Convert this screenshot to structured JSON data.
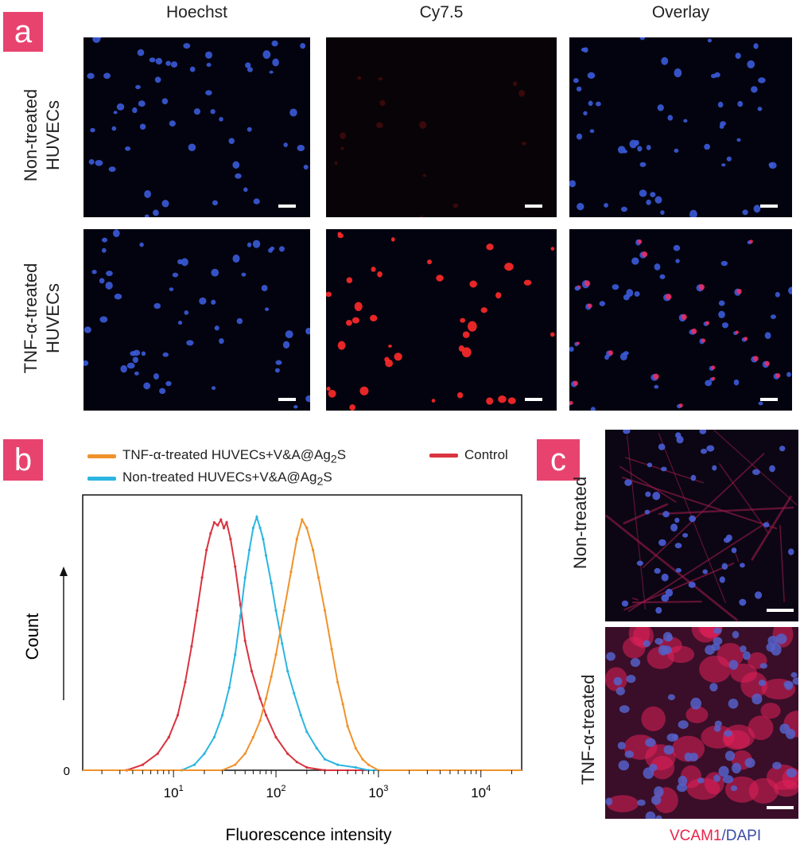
{
  "panels": {
    "a": {
      "letter": "a",
      "columns": [
        "Hoechst",
        "Cy7.5",
        "Overlay"
      ],
      "rows": [
        {
          "line1": "Non-treated",
          "line2": "HUVECs"
        },
        {
          "line1": "TNF-α-treated",
          "line2": "HUVECs"
        }
      ]
    },
    "b": {
      "letter": "b"
    },
    "c": {
      "letter": "c",
      "rows": [
        "Non-treated",
        "TNF-α-treated"
      ],
      "caption_vcam": "VCAM1",
      "caption_sep": "/",
      "caption_dapi": "DAPI"
    }
  },
  "colors": {
    "panel_badge": "#e8436f",
    "hoechst": "#3b5bd9",
    "cy75": "#ff2a2a",
    "vcam": "#e8234a",
    "dapi": "#3a4aa8"
  },
  "chart_data": {
    "type": "line",
    "title": "",
    "xlabel": "Fluorescence intensity",
    "ylabel": "Count",
    "xscale": "log",
    "xlim": [
      1.3,
      25000
    ],
    "ylim": [
      0,
      100
    ],
    "x_ticks": [
      {
        "value": 10,
        "base": "10",
        "exp": "1"
      },
      {
        "value": 100,
        "base": "10",
        "exp": "2"
      },
      {
        "value": 1000,
        "base": "10",
        "exp": "3"
      },
      {
        "value": 10000,
        "base": "10",
        "exp": "4"
      }
    ],
    "y_ticks": [
      "0"
    ],
    "legend": [
      {
        "name": "TNF-α-treated HUVECs+V&A@Ag",
        "sub": "2",
        "suffix": "S",
        "color": "#f0922b"
      },
      {
        "name": "Control",
        "color": "#d9333f"
      },
      {
        "name": "Non-treated HUVECs+V&A@Ag",
        "sub": "2",
        "suffix": "S",
        "color": "#2cb5e0"
      }
    ],
    "series": [
      {
        "name": "Control",
        "color": "#d9333f",
        "x": [
          3.5,
          5,
          7,
          9,
          11,
          13,
          15,
          17,
          19,
          21,
          23,
          25,
          27,
          29,
          31,
          33,
          36,
          40,
          45,
          50,
          58,
          70,
          80,
          100,
          130,
          160,
          200,
          300
        ],
        "y": [
          0,
          2,
          6,
          12,
          20,
          32,
          45,
          58,
          70,
          80,
          86,
          90,
          89,
          91,
          88,
          90,
          84,
          74,
          60,
          47,
          36,
          26,
          20,
          12,
          6,
          3,
          1,
          0
        ]
      },
      {
        "name": "Non-treated HUVECs+V&A@Ag2S",
        "color": "#2cb5e0",
        "x": [
          12,
          16,
          20,
          25,
          30,
          35,
          40,
          45,
          50,
          55,
          60,
          65,
          70,
          75,
          80,
          90,
          100,
          115,
          130,
          150,
          175,
          200,
          250,
          300,
          400,
          600,
          800
        ],
        "y": [
          0,
          2,
          6,
          12,
          20,
          30,
          42,
          56,
          70,
          80,
          88,
          92,
          88,
          84,
          78,
          68,
          58,
          46,
          36,
          28,
          20,
          14,
          8,
          4,
          2,
          1,
          0
        ]
      },
      {
        "name": "TNF-α-treated HUVECs+V&A@Ag2S",
        "color": "#f0922b",
        "x": [
          30,
          40,
          50,
          60,
          70,
          80,
          90,
          100,
          120,
          140,
          160,
          180,
          200,
          230,
          260,
          300,
          350,
          400,
          450,
          500,
          600,
          700,
          800,
          1000
        ],
        "y": [
          0,
          2,
          6,
          12,
          18,
          26,
          34,
          42,
          58,
          72,
          84,
          91,
          88,
          80,
          70,
          58,
          44,
          32,
          24,
          16,
          8,
          4,
          2,
          0
        ]
      }
    ]
  }
}
